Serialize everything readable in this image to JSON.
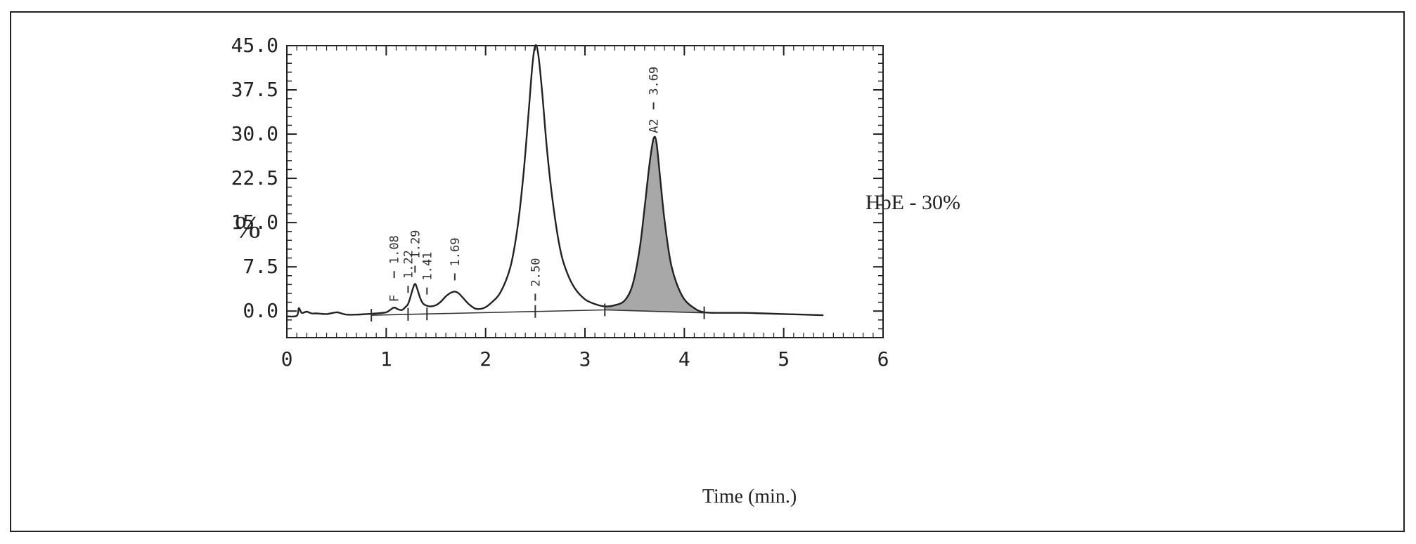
{
  "chart_data": {
    "type": "line",
    "xlabel": "Time (min.)",
    "ylabel": "%",
    "xlim": [
      0,
      6
    ],
    "ylim": [
      -4.5,
      45
    ],
    "x_ticks": [
      "0",
      "1",
      "2",
      "3",
      "4",
      "5",
      "6"
    ],
    "y_ticks": [
      "45.0",
      "37.5",
      "30.0",
      "22.5",
      "15.0",
      "7.5",
      "0.0"
    ],
    "grid": false,
    "annotation": "HbE - 30%",
    "peaks": [
      {
        "rt": "1.08",
        "x": 1.08,
        "y": 0.6,
        "tag": "F"
      },
      {
        "rt": "1.22",
        "x": 1.22,
        "y": 1.2,
        "tag": ""
      },
      {
        "rt": "1.29",
        "x": 1.29,
        "y": 4.6,
        "tag": ""
      },
      {
        "rt": "1.41",
        "x": 1.41,
        "y": 0.9,
        "tag": ""
      },
      {
        "rt": "1.69",
        "x": 1.69,
        "y": 3.3,
        "tag": ""
      },
      {
        "rt": "2.50",
        "x": 2.5,
        "y": 45.0,
        "tag": ""
      },
      {
        "rt": "3.69",
        "x": 3.69,
        "y": 29.2,
        "tag": "A2"
      }
    ],
    "baseline_marks": [
      0.85,
      1.22,
      1.41,
      2.5,
      3.2,
      4.2
    ],
    "shaded_region": [
      3.2,
      4.2
    ],
    "series": [
      {
        "x": [
          0.0,
          0.1,
          0.12,
          0.15,
          0.2,
          0.25,
          0.3,
          0.4,
          0.5,
          0.55,
          0.6,
          0.7,
          0.8,
          0.9,
          1.0,
          1.04,
          1.08,
          1.12,
          1.16,
          1.2,
          1.22,
          1.24,
          1.27,
          1.29,
          1.31,
          1.34,
          1.37,
          1.41,
          1.45,
          1.5,
          1.55,
          1.6,
          1.65,
          1.69,
          1.73,
          1.78,
          1.83,
          1.9,
          1.98,
          2.05,
          2.15,
          2.25,
          2.32,
          2.38,
          2.43,
          2.47,
          2.5,
          2.53,
          2.57,
          2.62,
          2.68,
          2.75,
          2.82,
          2.9,
          3.0,
          3.1,
          3.2,
          3.3,
          3.4,
          3.48,
          3.55,
          3.6,
          3.65,
          3.69,
          3.72,
          3.76,
          3.8,
          3.86,
          3.92,
          4.0,
          4.1,
          4.2,
          4.4,
          4.6,
          4.8,
          5.0,
          5.2,
          5.4
        ],
        "y": [
          -0.9,
          -0.8,
          0.5,
          -0.3,
          -0.1,
          -0.4,
          -0.4,
          -0.5,
          -0.2,
          -0.4,
          -0.6,
          -0.6,
          -0.5,
          -0.4,
          -0.2,
          0.2,
          0.6,
          0.3,
          0.2,
          0.8,
          1.2,
          2.2,
          3.9,
          4.6,
          3.9,
          2.3,
          1.3,
          0.9,
          0.8,
          1.0,
          1.6,
          2.5,
          3.1,
          3.3,
          3.0,
          2.1,
          1.2,
          0.4,
          0.5,
          1.3,
          3.2,
          7.5,
          14.0,
          23.0,
          33.0,
          41.5,
          45.0,
          43.5,
          37.0,
          27.0,
          18.0,
          10.5,
          6.5,
          3.8,
          2.0,
          1.2,
          0.8,
          1.0,
          1.8,
          4.5,
          10.5,
          17.5,
          25.0,
          29.2,
          28.5,
          22.0,
          15.5,
          8.5,
          4.8,
          2.0,
          0.5,
          -0.2,
          -0.3,
          -0.3,
          -0.4,
          -0.5,
          -0.6,
          -0.7
        ]
      }
    ]
  }
}
